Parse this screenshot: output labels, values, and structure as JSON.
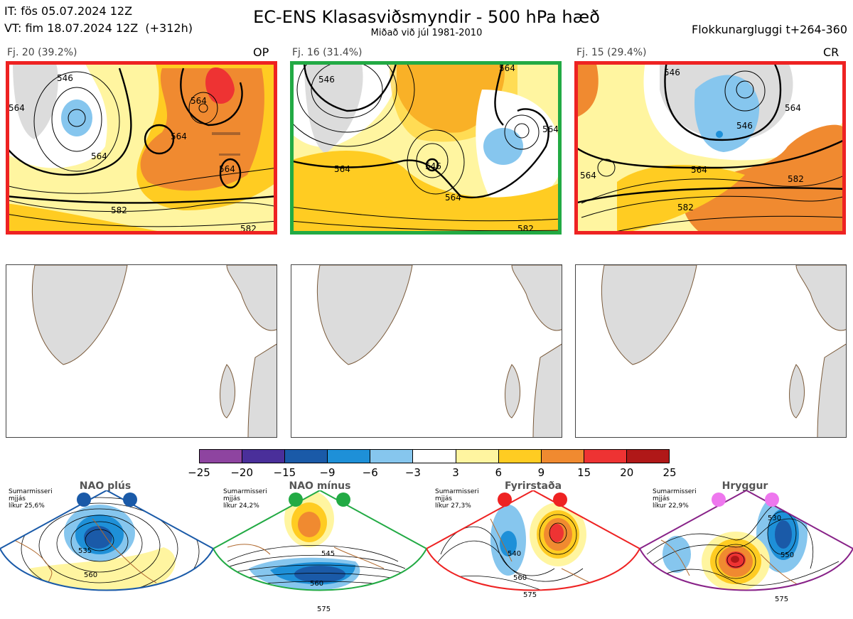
{
  "header": {
    "init_time": "IT: fös 05.07.2024 12Z",
    "valid_time": "VT: fim 18.07.2024 12Z  (+312h)",
    "title": "EC-ENS Klasasviðsmyndir - 500 hPa hæð",
    "subtitle": "Miðað við júl 1981-2010",
    "window": "Flokkunargluggi t+264-360"
  },
  "clusters": [
    {
      "label": "Fj. 20 (39.2%)",
      "tag": "OP",
      "frame_color": "#ee2222",
      "contour_labels": [
        "546",
        "564",
        "564",
        "564",
        "564",
        "582",
        "582",
        "564"
      ]
    },
    {
      "label": "Fj. 16 (31.4%)",
      "tag": "",
      "frame_color": "#22aa44",
      "contour_labels": [
        "564",
        "564",
        "564",
        "546",
        "564",
        "546",
        "582"
      ]
    },
    {
      "label": "Fj. 15 (29.4%)",
      "tag": "CR",
      "frame_color": "#ee2222",
      "contour_labels": [
        "546",
        "546",
        "564",
        "564",
        "582",
        "582",
        "564"
      ]
    }
  ],
  "colorbar": {
    "ticks": [
      "−25",
      "−20",
      "−15",
      "−9",
      "−6",
      "−3",
      "3",
      "6",
      "9",
      "15",
      "20",
      "25"
    ],
    "colors": [
      "#8e44a0",
      "#4a2f9a",
      "#1a5aa8",
      "#1e90d8",
      "#86c6ee",
      "#ffffff",
      "#fff5a0",
      "#ffcc22",
      "#f08a30",
      "#ee3333",
      "#b01818"
    ]
  },
  "regimes": [
    {
      "name": "NAO plús",
      "season": "Sumarmisseri",
      "period": "mjjás",
      "likelihood": "líkur 25,6%",
      "contour_labels": [
        "535",
        "560"
      ],
      "dot_color": "#1a5aa8",
      "frame_color": "#1a5aa8"
    },
    {
      "name": "NAO mínus",
      "season": "Sumarmisseri",
      "period": "mjjás",
      "likelihood": "líkur 24,2%",
      "contour_labels": [
        "545",
        "560",
        "575"
      ],
      "dot_color": "#22aa44",
      "frame_color": "#22aa44"
    },
    {
      "name": "Fyrirstaða",
      "season": "Sumarmisseri",
      "period": "mjjás",
      "likelihood": "líkur 27,3%",
      "contour_labels": [
        "540",
        "560",
        "575"
      ],
      "dot_color": "#ee2222",
      "frame_color": "#ee2222"
    },
    {
      "name": "Hryggur",
      "season": "Sumarmisseri",
      "period": "mjjás",
      "likelihood": "líkur 22,9%",
      "contour_labels": [
        "530",
        "550",
        "575"
      ],
      "dot_color": "#ee77ee",
      "frame_color": "#882288"
    }
  ]
}
